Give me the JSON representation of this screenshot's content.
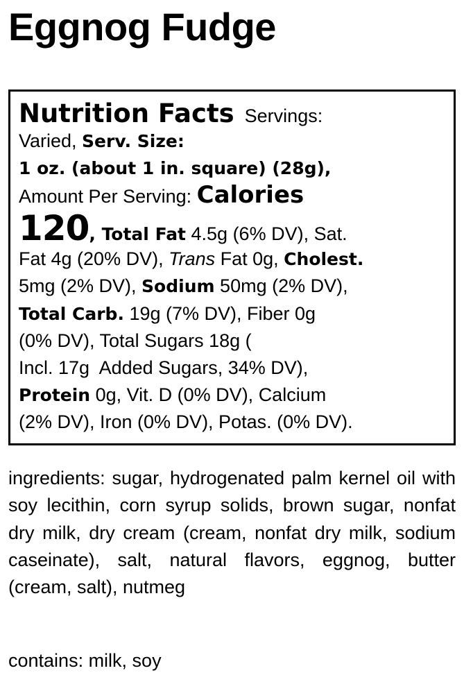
{
  "title": "Eggnog Fudge",
  "label": {
    "lines": [
      [
        {
          "t": "Nutrition Facts",
          "s": "h"
        },
        {
          "t": "  Servings:",
          "s": ""
        }
      ],
      [
        {
          "t": "Varied, ",
          "s": ""
        },
        {
          "t": "Serv. Size:",
          "s": "hb"
        }
      ],
      [
        {
          "t": "1 oz. (about 1 in. square) (28g),",
          "s": "hb"
        }
      ],
      [
        {
          "t": "Amount Per Serving: ",
          "s": ""
        },
        {
          "t": "Calories",
          "s": "cal"
        }
      ],
      [
        {
          "t": "120",
          "s": "big"
        },
        {
          "t": ", Total Fat",
          "s": "hb"
        },
        {
          "t": " 4.5g (6% DV), Sat.",
          "s": ""
        }
      ],
      [
        {
          "t": "Fat 4g (20% DV), ",
          "s": ""
        },
        {
          "t": "Trans",
          "s": "i"
        },
        {
          "t": " Fat 0g, ",
          "s": ""
        },
        {
          "t": "Cholest.",
          "s": "hb"
        }
      ],
      [
        {
          "t": "5mg (2% DV), ",
          "s": ""
        },
        {
          "t": "Sodium",
          "s": "hb"
        },
        {
          "t": " 50mg (2% DV),",
          "s": ""
        }
      ],
      [
        {
          "t": "Total Carb.",
          "s": "hb"
        },
        {
          "t": " 19g (7% DV), Fiber 0g",
          "s": ""
        }
      ],
      [
        {
          "t": "(0% DV), Total Sugars 18g (",
          "s": ""
        }
      ],
      [
        {
          "t": "Incl. 17g  Added Sugars, 34% DV),",
          "s": ""
        }
      ],
      [
        {
          "t": "Protein",
          "s": "hb"
        },
        {
          "t": " 0g, Vit. D (0% DV), Calcium",
          "s": ""
        }
      ],
      [
        {
          "t": "(2% DV), Iron (0% DV), Potas. (0% DV).",
          "s": ""
        }
      ]
    ]
  },
  "ingredients": "ingredients: sugar, hydrogenated palm kernel oil with soy lecithin, corn syrup solids, brown sugar, nonfat dry milk, dry cream (cream, nonfat dry milk, sodium caseinate), salt, natural flavors, eggnog, butter (cream, salt), nutmeg",
  "contains": "contains: milk, soy"
}
